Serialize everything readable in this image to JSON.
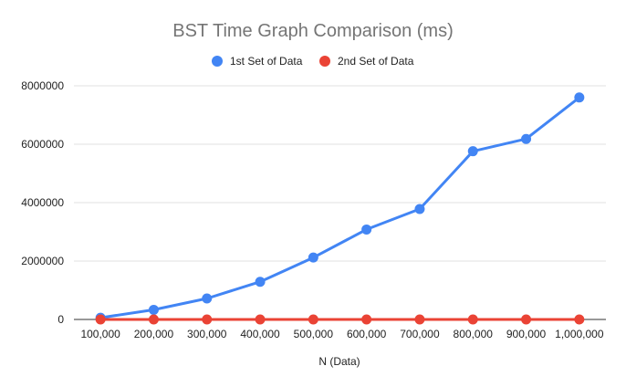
{
  "chart_data": {
    "type": "line",
    "title": "BST Time Graph Comparison (ms)",
    "xlabel": "N (Data)",
    "ylabel": "",
    "categories": [
      "100,000",
      "200,000",
      "300,000",
      "400,000",
      "500,000",
      "600,000",
      "700,000",
      "800,000",
      "900,000",
      "1,000,000"
    ],
    "ylim": [
      0,
      8000000
    ],
    "yticks": [
      0,
      2000000,
      4000000,
      6000000,
      8000000
    ],
    "ytick_labels": [
      "0",
      "2000000",
      "4000000",
      "6000000",
      "8000000"
    ],
    "grid": true,
    "legend_position": "top",
    "series": [
      {
        "name": "1st Set of Data",
        "color": "#4285f4",
        "values": [
          60000,
          330000,
          720000,
          1290000,
          2120000,
          3080000,
          3780000,
          5760000,
          6180000,
          7600000
        ]
      },
      {
        "name": "2nd Set of Data",
        "color": "#ea4335",
        "values": [
          10,
          20,
          30,
          40,
          50,
          60,
          70,
          80,
          90,
          100
        ]
      }
    ]
  }
}
